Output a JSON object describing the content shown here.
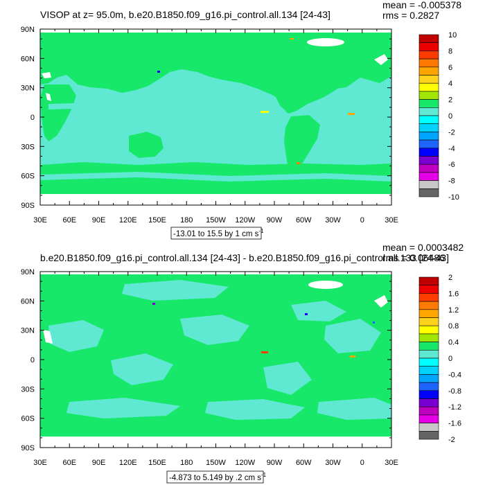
{
  "colors": {
    "land": "#18e86a",
    "ocean": "#5fe9d2",
    "missing": "#ffffff",
    "frame": "#000000"
  },
  "chart_data": [
    {
      "type": "heatmap",
      "title": "VISOP at z=  95.0m, b.e20.B1850.f09_g16.pi_control.all.134 [24-43]",
      "stat_mean": "mean = -0.005378",
      "stat_rms": "rms = 0.2827",
      "caption": "-13.01 to 15.5 by 1 cm s",
      "caption_sup": "-1",
      "xlim": [
        30,
        390
      ],
      "ylim": [
        -90,
        90
      ],
      "x_ticks": [
        "30E",
        "60E",
        "90E",
        "120E",
        "150E",
        "180",
        "150W",
        "120W",
        "90W",
        "60W",
        "30W",
        "0",
        "30E"
      ],
      "y_ticks": [
        "90N",
        "60N",
        "30N",
        "0",
        "30S",
        "60S",
        "90S"
      ],
      "colorbar": {
        "labels": [
          "10",
          "8",
          "6",
          "4",
          "2",
          "0",
          "-2",
          "-4",
          "-6",
          "-8",
          "-10"
        ],
        "colors": [
          "#c00000",
          "#ee0000",
          "#ff3c00",
          "#ff7a00",
          "#ffa500",
          "#ffd21e",
          "#ffff00",
          "#a0e600",
          "#18e86a",
          "#5fe9d2",
          "#00ffff",
          "#00d2ff",
          "#00a5ff",
          "#1e64ff",
          "#0000ff",
          "#7a00d2",
          "#c000c0",
          "#e600e6",
          "#c8c8c8",
          "#646464"
        ]
      }
    },
    {
      "type": "heatmap",
      "title": "b.e20.B1850.f09_g16.pi_control.all.134 [24-43] - b.e20.B1850.f09_g16.pi_control.all.133 [24-43]",
      "stat_mean": "mean = 0.0003482",
      "stat_rms": "rms = 0.06486",
      "caption": "-4.873 to 5.149 by .2 cm s",
      "caption_sup": "-1",
      "xlim": [
        30,
        390
      ],
      "ylim": [
        -90,
        90
      ],
      "x_ticks": [
        "30E",
        "60E",
        "90E",
        "120E",
        "150E",
        "180",
        "150W",
        "120W",
        "90W",
        "60W",
        "30W",
        "0",
        "30E"
      ],
      "y_ticks": [
        "90N",
        "60N",
        "30N",
        "0",
        "30S",
        "60S",
        "90S"
      ],
      "colorbar": {
        "labels": [
          "2",
          "1.6",
          "1.2",
          "0.8",
          "0.4",
          "0",
          "-0.4",
          "-0.8",
          "-1.2",
          "-1.6",
          "-2"
        ],
        "colors": [
          "#c00000",
          "#ee0000",
          "#ff3c00",
          "#ff7a00",
          "#ffa500",
          "#ffd21e",
          "#ffff00",
          "#a0e600",
          "#18e86a",
          "#5fe9d2",
          "#00ffff",
          "#00d2ff",
          "#00a5ff",
          "#1e64ff",
          "#0000ff",
          "#7a00d2",
          "#c000c0",
          "#e600e6",
          "#c8c8c8",
          "#646464"
        ]
      }
    }
  ]
}
